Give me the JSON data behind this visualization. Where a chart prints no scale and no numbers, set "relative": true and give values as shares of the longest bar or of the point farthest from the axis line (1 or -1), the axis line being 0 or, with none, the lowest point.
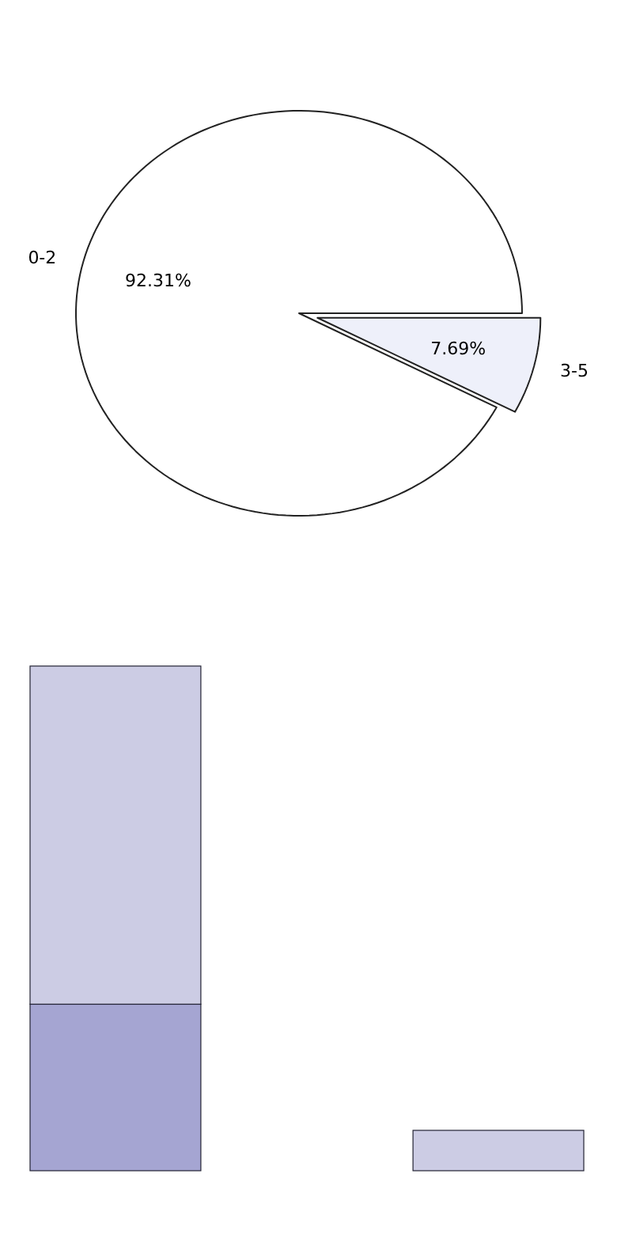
{
  "chart_data": [
    {
      "type": "pie",
      "categories": [
        "0-2",
        "3-5"
      ],
      "values": [
        92.31,
        7.69
      ],
      "colors": [
        "#ffffff",
        "#eef0fa"
      ],
      "value_labels": [
        "92.31%",
        "7.69%"
      ]
    },
    {
      "type": "bar",
      "stacked": true,
      "relative": true,
      "categories": [
        null,
        null
      ],
      "series": [
        {
          "color": "#a5a5d2",
          "values": [
            0.33,
            0
          ]
        },
        {
          "color": "#ccccE4",
          "values": [
            0.67,
            0.08
          ]
        }
      ]
    }
  ]
}
